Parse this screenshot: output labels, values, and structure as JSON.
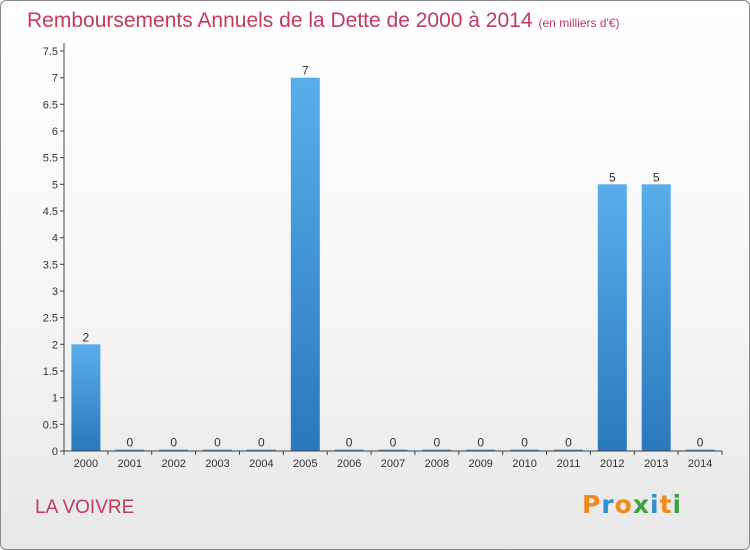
{
  "header": {
    "title": "Remboursements Annuels de la Dette de 2000 à 2014",
    "unit": "(en milliers d'€)"
  },
  "footer": {
    "commune": "LA VOIVRE"
  },
  "logo": {
    "letters": [
      "P",
      "r",
      "o",
      "x",
      "i",
      "t",
      "i"
    ],
    "colors": [
      "#f08a1c",
      "#2e8fd2",
      "#f08a1c",
      "#3aa53a",
      "#2e8fd2",
      "#f08a1c",
      "#3aa53a"
    ]
  },
  "chart_data": {
    "type": "bar",
    "title": "Remboursements Annuels de la Dette de 2000 à 2014",
    "subtitle": "(en milliers d'€)",
    "xlabel": "",
    "ylabel": "",
    "categories": [
      "2000",
      "2001",
      "2002",
      "2003",
      "2004",
      "2005",
      "2006",
      "2007",
      "2008",
      "2009",
      "2010",
      "2011",
      "2012",
      "2013",
      "2014"
    ],
    "values": [
      2,
      0,
      0,
      0,
      0,
      7,
      0,
      0,
      0,
      0,
      0,
      0,
      5,
      5,
      0
    ],
    "data_labels": [
      "2",
      "0",
      "0",
      "0",
      "0",
      "7",
      "0",
      "0",
      "0",
      "0",
      "0",
      "0",
      "5",
      "5",
      "0"
    ],
    "ylim": [
      0,
      7.5
    ],
    "y_ticks": [
      "0",
      "0.5",
      "1",
      "1.5",
      "2",
      "2.5",
      "3",
      "3.5",
      "4",
      "4.5",
      "5",
      "5.5",
      "6",
      "6.5",
      "7",
      "7.5"
    ],
    "grid": false,
    "legend": "none",
    "colors": {
      "bar_top": "#5aaeea",
      "bar_bottom": "#2a78bd",
      "axis": "#444444",
      "text": "#333333"
    }
  }
}
